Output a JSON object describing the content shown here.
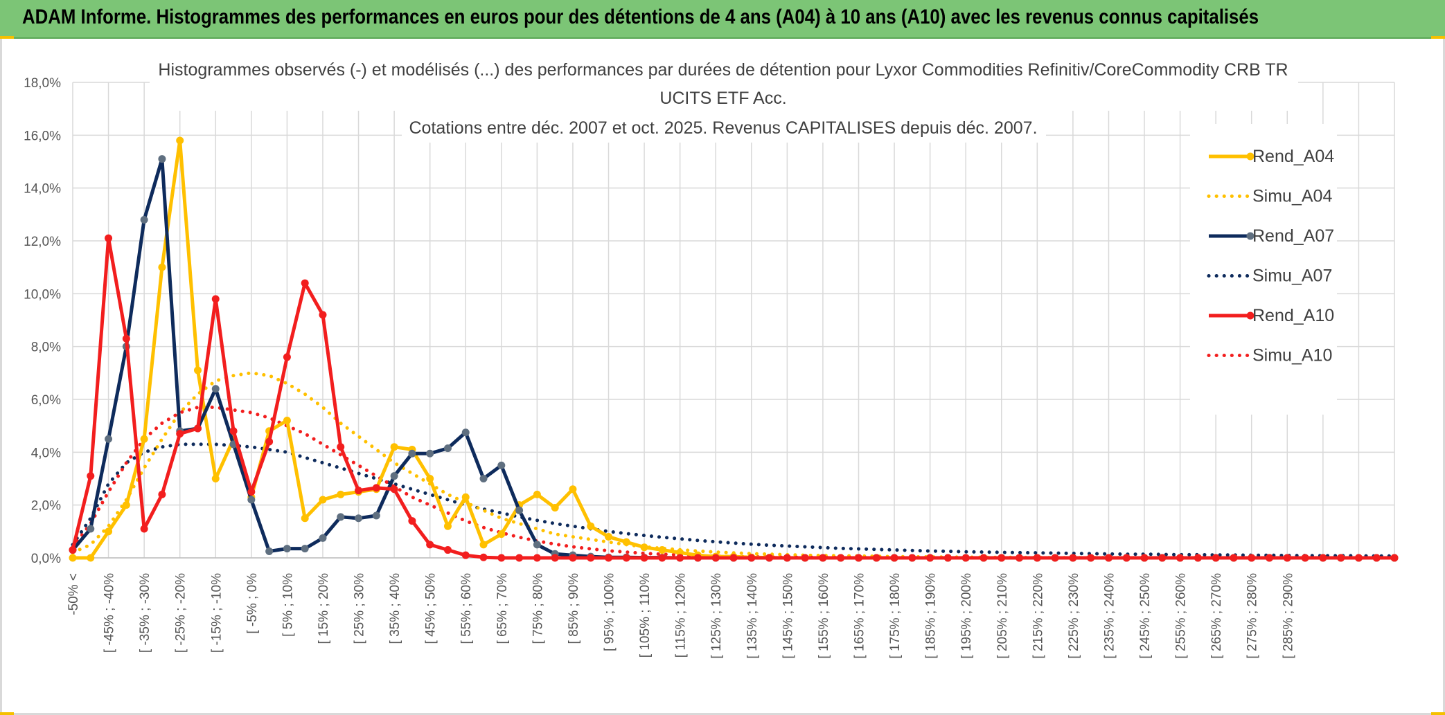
{
  "banner": {
    "title": "ADAM Informe. Histogrammes des performances en euros pour des détentions de 4 ans (A04) à 10 ans (A10) avec les revenus connus capitalisés"
  },
  "colors": {
    "banner_bg": "#7cc576",
    "A04": "#ffc000",
    "A07": "#0e2b5c",
    "A07_marker": "#5f6f80",
    "A10": "#f21e1e"
  },
  "chart_data": {
    "type": "line",
    "title_lines": [
      "Histogrammes observés (-) et modélisés (...) des performances par durées de détention pour Lyxor Commodities Refinitiv/CoreCommodity CRB TR",
      "UCITS ETF Acc.",
      "Cotations entre déc. 2007 et oct. 2025. Revenus CAPITALISES depuis déc. 2007."
    ],
    "yticks": [
      "0,0%",
      "2,0%",
      "4,0%",
      "6,0%",
      "8,0%",
      "10,0%",
      "12,0%",
      "14,0%",
      "16,0%",
      "18,0%"
    ],
    "ylim": [
      0,
      18
    ],
    "grid": true,
    "legend_position": "right",
    "xtick_labels": [
      "-50% <",
      "[ -45% ; -40%",
      "[ -35% ; -30%",
      "[ -25% ; -20%",
      "[ -15% ; -10%",
      "[ -5% ; 0%",
      "[ 5% ; 10%",
      "[ 15% ; 20%",
      "[ 25% ; 30%",
      "[ 35% ; 40%",
      "[ 45% ; 50%",
      "[ 55% ; 60%",
      "[ 65% ; 70%",
      "[ 75% ; 80%",
      "[ 85% ; 90%",
      "[ 95% ; 100%",
      "[ 105% ; 110%",
      "[ 115% ; 120%",
      "[ 125% ; 130%",
      "[ 135% ; 140%",
      "[ 145% ; 150%",
      "[ 155% ; 160%",
      "[ 165% ; 170%",
      "[ 175% ; 180%",
      "[ 185% ; 190%",
      "[ 195% ; 200%",
      "[ 205% ; 210%",
      "[ 215% ; 220%",
      "[ 225% ; 230%",
      "[ 235% ; 240%",
      "[ 245% ; 250%",
      "[ 255% ; 260%",
      "[ 265% ; 270%",
      "[ 275% ; 280%",
      "[ 285% ; 290%"
    ],
    "series": [
      {
        "name": "Rend_A04",
        "style": "solid",
        "color": "#ffc000",
        "values": [
          0,
          0,
          1.0,
          2.0,
          4.5,
          11.0,
          15.8,
          7.1,
          3.0,
          4.5,
          2.3,
          4.8,
          5.2,
          1.5,
          2.2,
          2.4,
          2.5,
          2.6,
          4.2,
          4.1,
          3.0,
          1.2,
          2.3,
          0.5,
          0.9,
          2.0,
          2.4,
          1.9,
          2.6,
          1.2,
          0.8,
          0.6,
          0.4,
          0.3,
          0.2,
          0.1,
          0.05,
          0.05,
          0.02,
          0.01,
          0,
          0,
          0,
          0,
          0,
          0,
          0,
          0,
          0,
          0,
          0,
          0,
          0,
          0,
          0,
          0,
          0,
          0,
          0,
          0,
          0,
          0,
          0,
          0,
          0,
          0,
          0,
          0,
          0,
          0,
          0,
          0,
          0,
          0,
          0
        ]
      },
      {
        "name": "Simu_A04",
        "style": "dotted",
        "color": "#ffc000",
        "values": [
          0.2,
          0.5,
          1.2,
          2.2,
          3.4,
          4.5,
          5.5,
          6.2,
          6.7,
          6.9,
          7.0,
          6.9,
          6.6,
          6.2,
          5.7,
          5.1,
          4.6,
          4.1,
          3.6,
          3.2,
          2.8,
          2.4,
          2.1,
          1.8,
          1.5,
          1.3,
          1.1,
          0.9,
          0.8,
          0.7,
          0.6,
          0.5,
          0.42,
          0.36,
          0.31,
          0.26,
          0.22,
          0.19,
          0.16,
          0.14,
          0.12,
          0.1,
          0.09,
          0.08,
          0.07,
          0.06,
          0.05,
          0.04,
          0.04,
          0.03,
          0.03,
          0.02,
          0.02,
          0.02,
          0.01,
          0.01,
          0.01,
          0.01,
          0.01,
          0.01,
          0,
          0,
          0,
          0,
          0,
          0,
          0,
          0,
          0,
          0,
          0,
          0,
          0,
          0,
          0
        ]
      },
      {
        "name": "Rend_A07",
        "style": "solid",
        "color": "#0e2b5c",
        "values": [
          0.3,
          1.1,
          4.5,
          8.0,
          12.8,
          15.1,
          4.8,
          4.9,
          6.4,
          4.3,
          2.2,
          0.25,
          0.35,
          0.35,
          0.75,
          1.55,
          1.5,
          1.6,
          3.1,
          3.95,
          3.95,
          4.15,
          4.75,
          3.0,
          3.5,
          1.8,
          0.5,
          0.15,
          0.1,
          0.05,
          0.02,
          0.02,
          0.01,
          0.01,
          0,
          0,
          0,
          0,
          0,
          0,
          0,
          0,
          0,
          0,
          0,
          0,
          0,
          0,
          0,
          0,
          0,
          0,
          0,
          0,
          0,
          0,
          0,
          0,
          0,
          0,
          0,
          0,
          0,
          0,
          0,
          0,
          0,
          0,
          0,
          0,
          0,
          0,
          0,
          0,
          0
        ]
      },
      {
        "name": "Simu_A07",
        "style": "dotted",
        "color": "#0e2b5c",
        "values": [
          0.5,
          1.5,
          2.8,
          3.6,
          4.0,
          4.2,
          4.3,
          4.3,
          4.3,
          4.25,
          4.2,
          4.1,
          4.0,
          3.8,
          3.6,
          3.4,
          3.2,
          3.0,
          2.8,
          2.6,
          2.4,
          2.2,
          2.0,
          1.85,
          1.7,
          1.55,
          1.42,
          1.3,
          1.2,
          1.1,
          1.0,
          0.92,
          0.85,
          0.78,
          0.72,
          0.66,
          0.61,
          0.56,
          0.52,
          0.48,
          0.45,
          0.42,
          0.39,
          0.36,
          0.34,
          0.32,
          0.3,
          0.28,
          0.26,
          0.25,
          0.23,
          0.22,
          0.21,
          0.2,
          0.19,
          0.18,
          0.17,
          0.16,
          0.15,
          0.14,
          0.14,
          0.13,
          0.12,
          0.12,
          0.11,
          0.11,
          0.1,
          0.1,
          0.09,
          0.09,
          0.08,
          0.08,
          0.08,
          0.07,
          0.07
        ]
      },
      {
        "name": "Rend_A10",
        "style": "solid",
        "color": "#f21e1e",
        "values": [
          0.3,
          3.1,
          12.1,
          8.3,
          1.1,
          2.4,
          4.7,
          4.9,
          9.8,
          4.8,
          2.5,
          4.4,
          7.6,
          10.4,
          9.2,
          4.2,
          2.55,
          2.65,
          2.6,
          1.4,
          0.5,
          0.3,
          0.1,
          0.02,
          0,
          0,
          0,
          0,
          0,
          0,
          0,
          0,
          0,
          0,
          0,
          0,
          0,
          0,
          0,
          0,
          0,
          0,
          0,
          0,
          0,
          0,
          0,
          0,
          0,
          0,
          0,
          0,
          0,
          0,
          0,
          0,
          0,
          0,
          0,
          0,
          0,
          0,
          0,
          0,
          0,
          0,
          0,
          0,
          0,
          0,
          0,
          0,
          0,
          0,
          0
        ]
      },
      {
        "name": "Simu_A10",
        "style": "dotted",
        "color": "#f21e1e",
        "values": [
          0.4,
          1.3,
          2.5,
          3.6,
          4.5,
          5.1,
          5.5,
          5.7,
          5.7,
          5.6,
          5.5,
          5.3,
          5.0,
          4.7,
          4.3,
          3.9,
          3.5,
          3.1,
          2.7,
          2.3,
          2.0,
          1.7,
          1.4,
          1.15,
          0.95,
          0.78,
          0.64,
          0.52,
          0.42,
          0.34,
          0.27,
          0.22,
          0.17,
          0.14,
          0.11,
          0.08,
          0.06,
          0.05,
          0.04,
          0.03,
          0.02,
          0.02,
          0.01,
          0.01,
          0.01,
          0,
          0,
          0,
          0,
          0,
          0,
          0,
          0,
          0,
          0,
          0,
          0,
          0,
          0,
          0,
          0,
          0,
          0,
          0,
          0,
          0,
          0,
          0,
          0,
          0,
          0,
          0,
          0,
          0,
          0
        ]
      }
    ]
  }
}
